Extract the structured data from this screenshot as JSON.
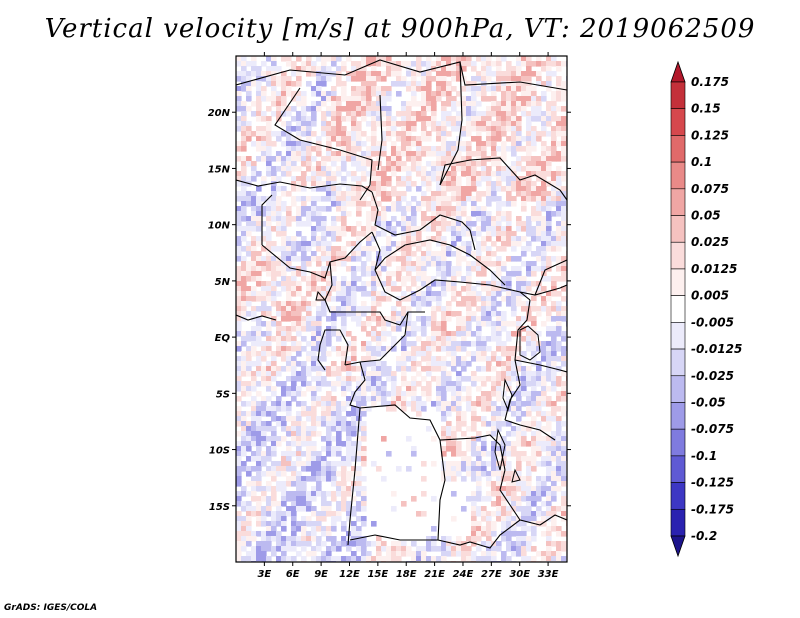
{
  "title": "Vertical velocity [m/s] at 900hPa, VT: 2019062509",
  "credit": "GrADS: IGES/COLA",
  "map": {
    "projection": "latlon",
    "lon_range": [
      0,
      35
    ],
    "lat_range": [
      -20,
      25
    ],
    "lon_ticks": [
      "3E",
      "6E",
      "9E",
      "12E",
      "15E",
      "18E",
      "21E",
      "24E",
      "27E",
      "30E",
      "33E"
    ],
    "lat_ticks": [
      "20N",
      "15N",
      "10N",
      "5N",
      "EQ",
      "5S",
      "10S",
      "15S"
    ],
    "field": "vertical velocity",
    "field_units": "m/s",
    "level": "900hPa",
    "valid_time": "2019062509"
  },
  "colorbar": {
    "labels": [
      "0.175",
      "0.15",
      "0.125",
      "0.1",
      "0.075",
      "0.05",
      "0.025",
      "0.0125",
      "0.005",
      "-0.005",
      "-0.0125",
      "-0.025",
      "-0.05",
      "-0.075",
      "-0.1",
      "-0.125",
      "-0.175",
      "-0.2"
    ],
    "colors": [
      "#b2182b",
      "#c4303a",
      "#d6484d",
      "#e06a6a",
      "#e98a88",
      "#f0a6a4",
      "#f5c2c0",
      "#fadcdb",
      "#fdf0ef",
      "#ffffff",
      "#ecebfb",
      "#d7d6f6",
      "#bcbaf0",
      "#9e9be8",
      "#7f7bdf",
      "#5f5ad4",
      "#3d37c4",
      "#2a22b0",
      "#1c148c"
    ]
  },
  "land_mask_color": "#ffffff",
  "border_color": "#000000"
}
